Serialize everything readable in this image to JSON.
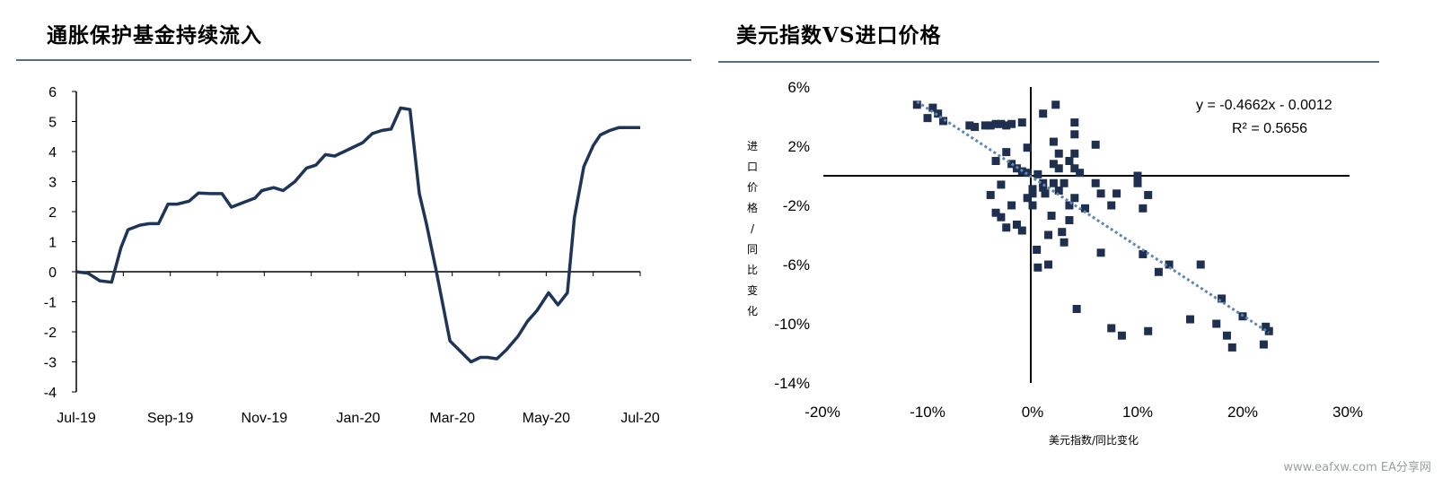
{
  "left_title": "通胀保护基金持续流入",
  "right_title": "美元指数VS进口价格",
  "watermark": "www.eafxw.com  EA分享网",
  "chart_data": [
    {
      "type": "line",
      "title": "通胀保护基金持续流入",
      "xlabel": "",
      "ylabel": "",
      "ylim": [
        -4,
        6
      ],
      "yticks": [
        "6",
        "5",
        "4",
        "3",
        "2",
        "1",
        "0",
        "-1",
        "-2",
        "-3",
        "-4"
      ],
      "xtick_labels": [
        "Jul-19",
        "Sep-19",
        "Nov-19",
        "Jan-20",
        "Mar-20",
        "May-20",
        "Jul-20"
      ],
      "series": [
        {
          "color": "#1f3557",
          "x": [
            0,
            0.25,
            0.5,
            0.75,
            0.95,
            1.1,
            1.35,
            1.55,
            1.75,
            1.95,
            2.15,
            2.4,
            2.6,
            2.85,
            3.1,
            3.3,
            3.55,
            3.8,
            3.95,
            4.2,
            4.4,
            4.65,
            4.9,
            5.1,
            5.3,
            5.5,
            5.7,
            5.9,
            6.1,
            6.3,
            6.5,
            6.7,
            6.9,
            7.1,
            7.3,
            7.45,
            7.65,
            7.95,
            8.4,
            8.6,
            8.75,
            8.95,
            9.15,
            9.4,
            9.6,
            9.8,
            10.05,
            10.25,
            10.45,
            10.6,
            10.8,
            11.0,
            11.15,
            11.35,
            11.55,
            11.8,
            12.0
          ],
          "y": [
            0,
            -0.05,
            -0.3,
            -0.35,
            0.8,
            1.4,
            1.55,
            1.6,
            1.6,
            2.25,
            2.25,
            2.35,
            2.62,
            2.6,
            2.6,
            2.15,
            2.3,
            2.45,
            2.7,
            2.8,
            2.7,
            3.0,
            3.45,
            3.55,
            3.9,
            3.85,
            4.0,
            4.15,
            4.3,
            4.6,
            4.7,
            4.75,
            5.45,
            5.4,
            2.6,
            1.6,
            0.1,
            -2.3,
            -3.0,
            -2.85,
            -2.85,
            -2.9,
            -2.6,
            -2.15,
            -1.65,
            -1.3,
            -0.7,
            -1.1,
            -0.7,
            1.8,
            3.5,
            4.2,
            4.55,
            4.7,
            4.8,
            4.8,
            4.8
          ]
        }
      ]
    },
    {
      "type": "scatter",
      "title": "美元指数VS进口价格",
      "xlabel": "美元指数/同比变化",
      "ylabel": "进口价格/同比变化",
      "xlim": [
        -0.2,
        0.3
      ],
      "ylim": [
        -0.14,
        0.06
      ],
      "xticks": [
        "-20%",
        "-10%",
        "0%",
        "10%",
        "20%",
        "30%"
      ],
      "yticks": [
        "6%",
        "2%",
        "-2%",
        "-6%",
        "-10%",
        "-14%"
      ],
      "equation": "y = -0.4662x - 0.0012",
      "r2": "R² = 0.5656",
      "trendline": {
        "slope": -0.4662,
        "intercept": -0.0012,
        "x_from": -0.11,
        "x_to": 0.225
      },
      "points": [
        [
          -0.11,
          0.048
        ],
        [
          -0.1,
          0.039
        ],
        [
          -0.095,
          0.046
        ],
        [
          -0.09,
          0.042
        ],
        [
          -0.085,
          0.037
        ],
        [
          -0.06,
          0.034
        ],
        [
          -0.055,
          0.033
        ],
        [
          -0.045,
          0.034
        ],
        [
          -0.04,
          0.034
        ],
        [
          -0.035,
          0.035
        ],
        [
          -0.03,
          0.035
        ],
        [
          -0.025,
          0.034
        ],
        [
          -0.02,
          0.035
        ],
        [
          -0.01,
          0.036
        ],
        [
          -0.005,
          0.019
        ],
        [
          -0.035,
          0.01
        ],
        [
          -0.025,
          0.016
        ],
        [
          -0.02,
          0.008
        ],
        [
          -0.015,
          0.005
        ],
        [
          -0.01,
          0.003
        ],
        [
          -0.005,
          0.002
        ],
        [
          -0.03,
          -0.006
        ],
        [
          -0.02,
          -0.02
        ],
        [
          -0.015,
          -0.033
        ],
        [
          -0.01,
          -0.037
        ],
        [
          -0.005,
          -0.015
        ],
        [
          0.0,
          -0.012
        ],
        [
          0.0,
          -0.02
        ],
        [
          -0.04,
          -0.013
        ],
        [
          -0.035,
          -0.025
        ],
        [
          -0.03,
          -0.028
        ],
        [
          -0.025,
          -0.035
        ],
        [
          0.005,
          0.001
        ],
        [
          0.0,
          -0.009
        ],
        [
          0.005,
          -0.062
        ],
        [
          0.004,
          -0.05
        ],
        [
          0.01,
          0.042
        ],
        [
          0.01,
          -0.005
        ],
        [
          0.01,
          -0.008
        ],
        [
          0.012,
          -0.012
        ],
        [
          0.015,
          -0.04
        ],
        [
          0.015,
          -0.06
        ],
        [
          0.018,
          -0.027
        ],
        [
          0.02,
          0.023
        ],
        [
          0.02,
          0.008
        ],
        [
          0.02,
          -0.005
        ],
        [
          0.025,
          0.015
        ],
        [
          0.025,
          0.005
        ],
        [
          0.025,
          -0.01
        ],
        [
          0.022,
          0.048
        ],
        [
          0.03,
          -0.005
        ],
        [
          0.03,
          -0.045
        ],
        [
          0.028,
          -0.038
        ],
        [
          0.035,
          0.01
        ],
        [
          0.035,
          -0.02
        ],
        [
          0.035,
          -0.03
        ],
        [
          0.04,
          0.036
        ],
        [
          0.04,
          0.028
        ],
        [
          0.04,
          0.015
        ],
        [
          0.04,
          0.005
        ],
        [
          0.04,
          -0.015
        ],
        [
          0.042,
          -0.09
        ],
        [
          0.045,
          0.002
        ],
        [
          0.05,
          -0.022
        ],
        [
          0.06,
          -0.005
        ],
        [
          0.06,
          0.021
        ],
        [
          0.065,
          -0.012
        ],
        [
          0.065,
          -0.052
        ],
        [
          0.075,
          -0.02
        ],
        [
          0.075,
          -0.103
        ],
        [
          0.08,
          -0.012
        ],
        [
          0.085,
          -0.108
        ],
        [
          0.1,
          -0.005
        ],
        [
          0.1,
          0.0
        ],
        [
          0.105,
          -0.022
        ],
        [
          0.105,
          -0.053
        ],
        [
          0.11,
          -0.105
        ],
        [
          0.11,
          -0.013
        ],
        [
          0.12,
          -0.065
        ],
        [
          0.13,
          -0.06
        ],
        [
          0.15,
          -0.097
        ],
        [
          0.16,
          -0.06
        ],
        [
          0.175,
          -0.1
        ],
        [
          0.18,
          -0.083
        ],
        [
          0.185,
          -0.108
        ],
        [
          0.19,
          -0.116
        ],
        [
          0.2,
          -0.095
        ],
        [
          0.22,
          -0.114
        ],
        [
          0.225,
          -0.105
        ],
        [
          0.222,
          -0.102
        ]
      ]
    }
  ]
}
